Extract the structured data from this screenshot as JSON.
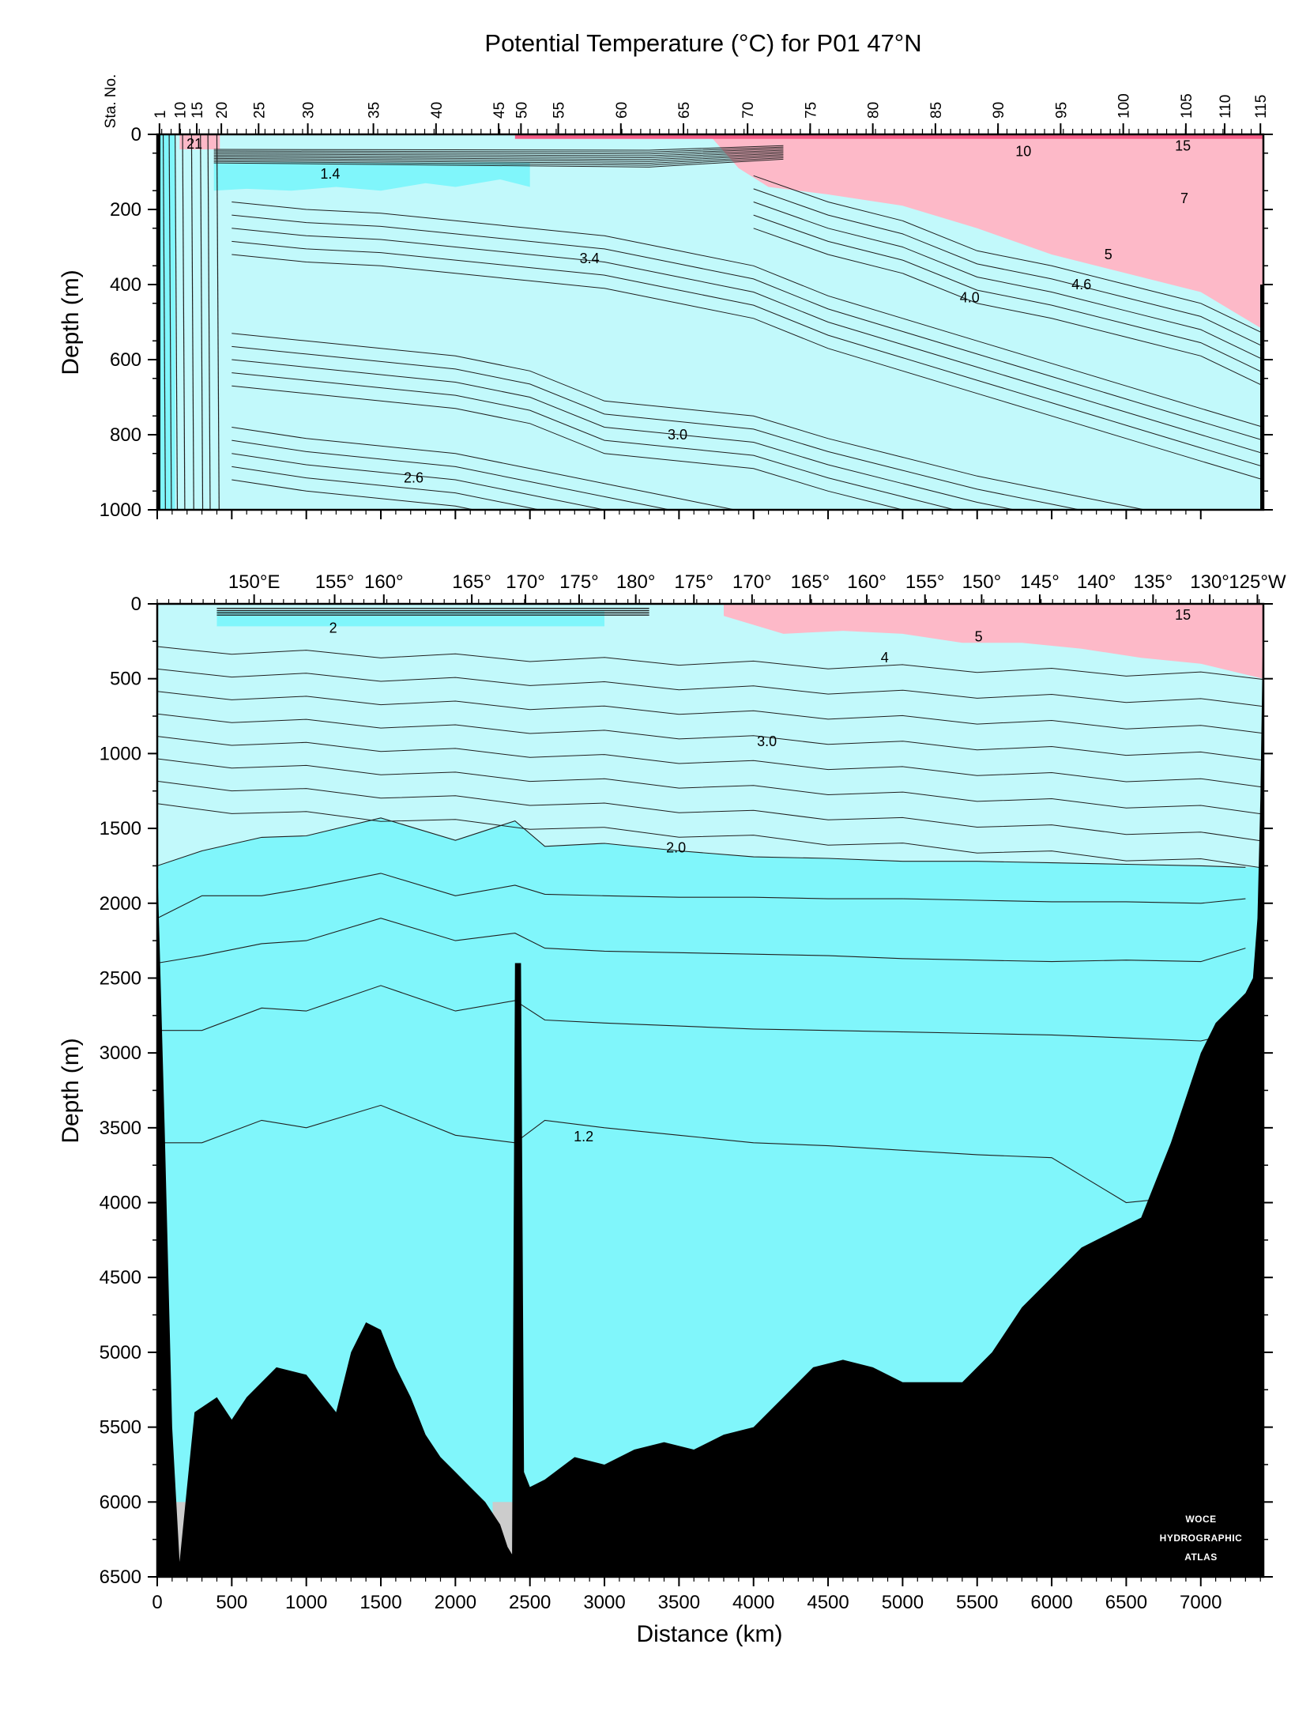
{
  "title": "Potential Temperature (°C) for P01 47°N",
  "colors": {
    "cold_deep": "#80f6fb",
    "mid": "#c2f9fb",
    "warm": "#fdb9c8",
    "hot": "#f65b86",
    "bathymetry": "#000000",
    "gap": "#cccccc",
    "contour": "#202020"
  },
  "chart_data": [
    {
      "type": "heatmap",
      "panel": "top",
      "title": "Potential Temperature (°C) for P01 47°N",
      "ylabel": "Depth (m)",
      "xlabel": "",
      "xlim": [
        0,
        7420
      ],
      "ylim": [
        0,
        1000
      ],
      "y_ticks": [
        0,
        200,
        400,
        600,
        800,
        1000
      ],
      "station_axis_label": "Sta. No.",
      "station_ticks": [
        {
          "label": "1",
          "km": 15
        },
        {
          "label": "10",
          "km": 150
        },
        {
          "label": "15",
          "km": 265
        },
        {
          "label": "20",
          "km": 430
        },
        {
          "label": "25",
          "km": 680
        },
        {
          "label": "30",
          "km": 1010
        },
        {
          "label": "35",
          "km": 1450
        },
        {
          "label": "40",
          "km": 1870
        },
        {
          "label": "45",
          "km": 2290
        },
        {
          "label": "50",
          "km": 2440
        },
        {
          "label": "55",
          "km": 2690
        },
        {
          "label": "60",
          "km": 3110
        },
        {
          "label": "65",
          "km": 3530
        },
        {
          "label": "70",
          "km": 3960
        },
        {
          "label": "75",
          "km": 4380
        },
        {
          "label": "80",
          "km": 4800
        },
        {
          "label": "85",
          "km": 5220
        },
        {
          "label": "90",
          "km": 5640
        },
        {
          "label": "95",
          "km": 6060
        },
        {
          "label": "100",
          "km": 6480
        },
        {
          "label": "105",
          "km": 6900
        },
        {
          "label": "110",
          "km": 7160
        },
        {
          "label": "115",
          "km": 7400
        }
      ],
      "contour_labels": [
        {
          "text": "21",
          "km": 250,
          "depth": 25
        },
        {
          "text": "10",
          "km": 5810,
          "depth": 45
        },
        {
          "text": "15",
          "km": 6880,
          "depth": 30
        },
        {
          "text": "1.4",
          "km": 1160,
          "depth": 105
        },
        {
          "text": "7",
          "km": 6890,
          "depth": 170
        },
        {
          "text": "3.4",
          "km": 2900,
          "depth": 330
        },
        {
          "text": "5",
          "km": 6380,
          "depth": 320
        },
        {
          "text": "4.6",
          "km": 6200,
          "depth": 400
        },
        {
          "text": "4.0",
          "km": 5450,
          "depth": 435
        },
        {
          "text": "3.0",
          "km": 3490,
          "depth": 800
        },
        {
          "text": "2.6",
          "km": 1720,
          "depth": 915
        }
      ],
      "isotherm_depths_m": {
        "x_km": [
          0,
          500,
          1000,
          1500,
          2000,
          2500,
          3000,
          3500,
          4000,
          4500,
          5000,
          5500,
          6000,
          6500,
          7000,
          7420
        ],
        "t_4_0": [
          null,
          null,
          null,
          null,
          null,
          null,
          null,
          null,
          180,
          250,
          300,
          380,
          420,
          470,
          520,
          600
        ],
        "t_3_4": [
          null,
          250,
          270,
          280,
          300,
          320,
          340,
          380,
          420,
          500,
          560,
          620,
          680,
          740,
          800,
          850
        ],
        "t_3_0": [
          null,
          600,
          620,
          640,
          660,
          700,
          780,
          800,
          820,
          880,
          930,
          980,
          1020,
          1060,
          1100,
          1150
        ],
        "t_2_6": [
          null,
          850,
          880,
          900,
          920,
          960,
          1000,
          1040,
          1080,
          1120,
          1160,
          1200,
          1240,
          1280,
          1320,
          1360
        ]
      }
    },
    {
      "type": "heatmap",
      "panel": "bottom",
      "xlabel": "Distance (km)",
      "ylabel": "Depth (m)",
      "xlim": [
        0,
        7420
      ],
      "ylim": [
        0,
        6500
      ],
      "x_ticks": [
        0,
        500,
        1000,
        1500,
        2000,
        2500,
        3000,
        3500,
        4000,
        4500,
        5000,
        5500,
        6000,
        6500,
        7000
      ],
      "y_ticks": [
        0,
        500,
        1000,
        1500,
        2000,
        2500,
        3000,
        3500,
        4000,
        4500,
        5000,
        5500,
        6000,
        6500
      ],
      "longitude_ticks": [
        {
          "label": "150°E",
          "km": 650
        },
        {
          "label": "155°",
          "km": 1190
        },
        {
          "label": "160°",
          "km": 1520
        },
        {
          "label": "165°",
          "km": 2110
        },
        {
          "label": "170°",
          "km": 2470
        },
        {
          "label": "175°",
          "km": 2830
        },
        {
          "label": "180°",
          "km": 3210
        },
        {
          "label": "175°",
          "km": 3600
        },
        {
          "label": "170°",
          "km": 3990
        },
        {
          "label": "165°",
          "km": 4380
        },
        {
          "label": "160°",
          "km": 4760
        },
        {
          "label": "155°",
          "km": 5150
        },
        {
          "label": "150°",
          "km": 5530
        },
        {
          "label": "145°",
          "km": 5920
        },
        {
          "label": "140°",
          "km": 6300
        },
        {
          "label": "135°",
          "km": 6680
        },
        {
          "label": "130°",
          "km": 7060
        },
        {
          "label": "125°W",
          "km": 7380
        }
      ],
      "contour_labels": [
        {
          "text": "15",
          "km": 6880,
          "depth": 75
        },
        {
          "text": "2",
          "km": 1180,
          "depth": 160
        },
        {
          "text": "5",
          "km": 5510,
          "depth": 220
        },
        {
          "text": "4",
          "km": 4880,
          "depth": 360
        },
        {
          "text": "3.0",
          "km": 4090,
          "depth": 920
        },
        {
          "text": "2.0",
          "km": 3480,
          "depth": 1630
        },
        {
          "text": "1.2",
          "km": 2860,
          "depth": 3560
        }
      ],
      "bathymetry": {
        "x_km": [
          0,
          50,
          100,
          150,
          200,
          250,
          400,
          500,
          600,
          800,
          1000,
          1200,
          1300,
          1400,
          1500,
          1600,
          1700,
          1800,
          1900,
          2000,
          2100,
          2200,
          2300,
          2350,
          2380,
          2400,
          2440,
          2460,
          2500,
          2600,
          2800,
          3000,
          3200,
          3400,
          3600,
          3800,
          4000,
          4200,
          4400,
          4600,
          4800,
          5000,
          5200,
          5400,
          5600,
          5800,
          6000,
          6200,
          6400,
          6600,
          6800,
          7000,
          7100,
          7200,
          7300,
          7350,
          7380,
          7400,
          7420
        ],
        "depth_m": [
          1700,
          3500,
          5500,
          6400,
          5900,
          5400,
          5300,
          5450,
          5300,
          5100,
          5150,
          5400,
          5000,
          4800,
          4850,
          5100,
          5300,
          5550,
          5700,
          5800,
          5900,
          6000,
          6150,
          6300,
          6350,
          2400,
          2400,
          5800,
          5900,
          5850,
          5700,
          5750,
          5650,
          5600,
          5650,
          5550,
          5500,
          5300,
          5100,
          5050,
          5100,
          5200,
          5200,
          5200,
          5000,
          4700,
          4500,
          4300,
          4200,
          4100,
          3600,
          3000,
          2800,
          2700,
          2600,
          2500,
          2100,
          1300,
          0
        ]
      },
      "isotherm_depths_m": {
        "x_km": [
          0,
          300,
          700,
          1000,
          1500,
          2000,
          2400,
          2600,
          3000,
          3500,
          4000,
          4500,
          5000,
          5500,
          6000,
          6500,
          7000,
          7300
        ],
        "t_2_0": [
          1750,
          1650,
          1560,
          1550,
          1430,
          1580,
          1450,
          1620,
          1600,
          1650,
          1690,
          1700,
          1720,
          1720,
          1730,
          1740,
          1750,
          1760
        ],
        "t_1_8": [
          2100,
          1950,
          1950,
          1900,
          1800,
          1950,
          1880,
          1940,
          1950,
          1960,
          1960,
          1970,
          1970,
          1980,
          1990,
          1990,
          2000,
          1970
        ],
        "t_1_6": [
          2400,
          2350,
          2270,
          2250,
          2100,
          2250,
          2200,
          2300,
          2320,
          2330,
          2340,
          2350,
          2370,
          2380,
          2390,
          2380,
          2390,
          2300
        ],
        "t_1_4": [
          2850,
          2850,
          2700,
          2720,
          2550,
          2720,
          2650,
          2780,
          2800,
          2820,
          2840,
          2850,
          2860,
          2870,
          2880,
          2900,
          2920,
          2850
        ],
        "t_1_2": [
          3600,
          3600,
          3450,
          3500,
          3350,
          3550,
          3600,
          3450,
          3500,
          3550,
          3600,
          3620,
          3650,
          3680,
          3700,
          4000,
          3950,
          3900
        ]
      },
      "woce_stamp": [
        "WOCE",
        "HYDROGRAPHIC",
        "ATLAS"
      ]
    }
  ]
}
